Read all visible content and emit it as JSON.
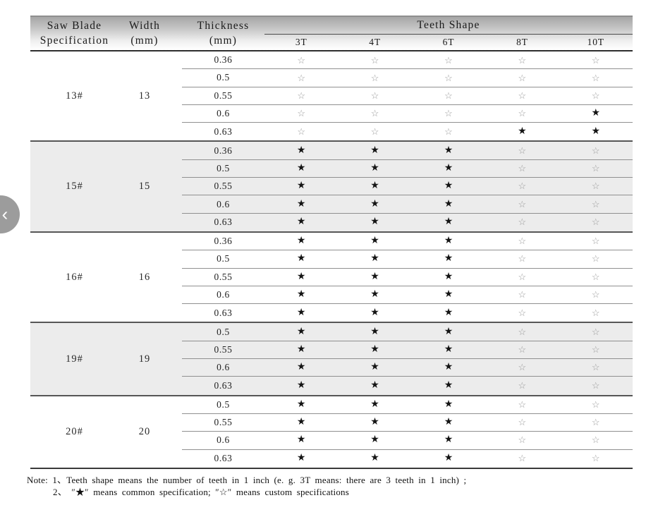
{
  "table": {
    "headers": {
      "spec_line1": "Saw Blade",
      "spec_line2": "Specification",
      "width_line1": "Width",
      "width_line2": "(mm)",
      "thickness_line1": "Thickness",
      "thickness_line2": "(mm)",
      "teeth_shape": "Teeth Shape",
      "teeth_cols": [
        "3T",
        "4T",
        "6T",
        "8T",
        "10T"
      ]
    },
    "legend": {
      "common_icon": "★",
      "custom_icon": "☆",
      "common_meaning": "common specification",
      "custom_meaning": "custom specifications"
    },
    "groups": [
      {
        "spec": "13#",
        "width": "13",
        "shaded": false,
        "rows": [
          {
            "thickness": "0.36",
            "stars": [
              "☆",
              "☆",
              "☆",
              "☆",
              "☆"
            ]
          },
          {
            "thickness": "0.5",
            "stars": [
              "☆",
              "☆",
              "☆",
              "☆",
              "☆"
            ]
          },
          {
            "thickness": "0.55",
            "stars": [
              "☆",
              "☆",
              "☆",
              "☆",
              "☆"
            ]
          },
          {
            "thickness": "0.6",
            "stars": [
              "☆",
              "☆",
              "☆",
              "☆",
              "★"
            ]
          },
          {
            "thickness": "0.63",
            "stars": [
              "☆",
              "☆",
              "☆",
              "★",
              "★"
            ]
          }
        ]
      },
      {
        "spec": "15#",
        "width": "15",
        "shaded": true,
        "rows": [
          {
            "thickness": "0.36",
            "stars": [
              "★",
              "★",
              "★",
              "☆",
              "☆"
            ]
          },
          {
            "thickness": "0.5",
            "stars": [
              "★",
              "★",
              "★",
              "☆",
              "☆"
            ]
          },
          {
            "thickness": "0.55",
            "stars": [
              "★",
              "★",
              "★",
              "☆",
              "☆"
            ]
          },
          {
            "thickness": "0.6",
            "stars": [
              "★",
              "★",
              "★",
              "☆",
              "☆"
            ]
          },
          {
            "thickness": "0.63",
            "stars": [
              "★",
              "★",
              "★",
              "☆",
              "☆"
            ]
          }
        ]
      },
      {
        "spec": "16#",
        "width": "16",
        "shaded": false,
        "rows": [
          {
            "thickness": "0.36",
            "stars": [
              "★",
              "★",
              "★",
              "☆",
              "☆"
            ]
          },
          {
            "thickness": "0.5",
            "stars": [
              "★",
              "★",
              "★",
              "☆",
              "☆"
            ]
          },
          {
            "thickness": "0.55",
            "stars": [
              "★",
              "★",
              "★",
              "☆",
              "☆"
            ]
          },
          {
            "thickness": "0.6",
            "stars": [
              "★",
              "★",
              "★",
              "☆",
              "☆"
            ]
          },
          {
            "thickness": "0.63",
            "stars": [
              "★",
              "★",
              "★",
              "☆",
              "☆"
            ]
          }
        ]
      },
      {
        "spec": "19#",
        "width": "19",
        "shaded": true,
        "rows": [
          {
            "thickness": "0.5",
            "stars": [
              "★",
              "★",
              "★",
              "☆",
              "☆"
            ]
          },
          {
            "thickness": "0.55",
            "stars": [
              "★",
              "★",
              "★",
              "☆",
              "☆"
            ]
          },
          {
            "thickness": "0.6",
            "stars": [
              "★",
              "★",
              "★",
              "☆",
              "☆"
            ]
          },
          {
            "thickness": "0.63",
            "stars": [
              "★",
              "★",
              "★",
              "☆",
              "☆"
            ]
          }
        ]
      },
      {
        "spec": "20#",
        "width": "20",
        "shaded": false,
        "rows": [
          {
            "thickness": "0.5",
            "stars": [
              "★",
              "★",
              "★",
              "☆",
              "☆"
            ]
          },
          {
            "thickness": "0.55",
            "stars": [
              "★",
              "★",
              "★",
              "☆",
              "☆"
            ]
          },
          {
            "thickness": "0.6",
            "stars": [
              "★",
              "★",
              "★",
              "☆",
              "☆"
            ]
          },
          {
            "thickness": "0.63",
            "stars": [
              "★",
              "★",
              "★",
              "☆",
              "☆"
            ]
          }
        ]
      }
    ],
    "note_line1": "Note: 1、Teeth shape means the number of teeth in 1 inch (e. g. 3T  means: there are 3 teeth in 1 inch) ;",
    "note_line2": "2、 ″★″ means common specification;  ″☆″ means custom specifications"
  },
  "nav": {
    "prev_chevron": "‹"
  }
}
